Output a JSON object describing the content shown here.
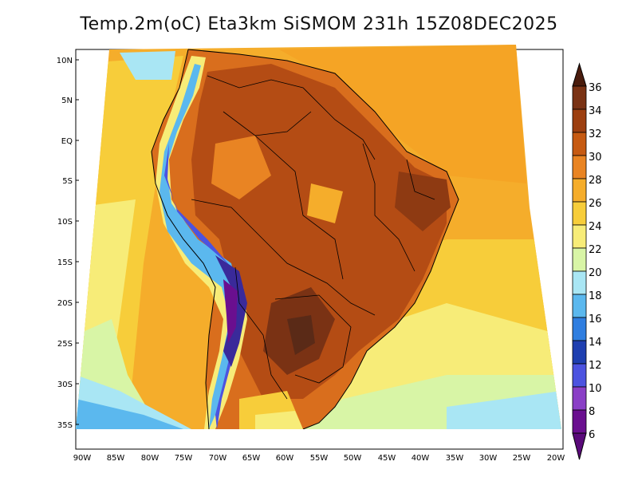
{
  "title": "Temp.2m(oC) Eta3km SiSMOM 231h 15Z08DEC2025",
  "map": {
    "lat_labels": [
      "10N",
      "5N",
      "EQ",
      "5S",
      "10S",
      "15S",
      "20S",
      "25S",
      "30S",
      "35S"
    ],
    "lon_labels": [
      "90W",
      "85W",
      "80W",
      "75W",
      "70W",
      "65W",
      "60W",
      "55W",
      "50W",
      "45W",
      "40W",
      "35W",
      "30W",
      "25W",
      "20W"
    ]
  },
  "colorbar": {
    "labels": [
      "36",
      "34",
      "32",
      "30",
      "28",
      "26",
      "24",
      "22",
      "20",
      "18",
      "16",
      "14",
      "12",
      "10",
      "8",
      "6"
    ],
    "colors": [
      "#5a2a17",
      "#7a3214",
      "#9c3f10",
      "#c65a12",
      "#e98423",
      "#f5ad2b",
      "#f7cd3a",
      "#f7ec78",
      "#d8f5a6",
      "#a9e6f4",
      "#5bb8ee",
      "#2f7ee0",
      "#1e3fb0",
      "#4c53e0",
      "#8a3fc6",
      "#6a0f8f"
    ],
    "tip_top": "#4a1c0d",
    "tip_bottom": "#5a0a7a"
  }
}
